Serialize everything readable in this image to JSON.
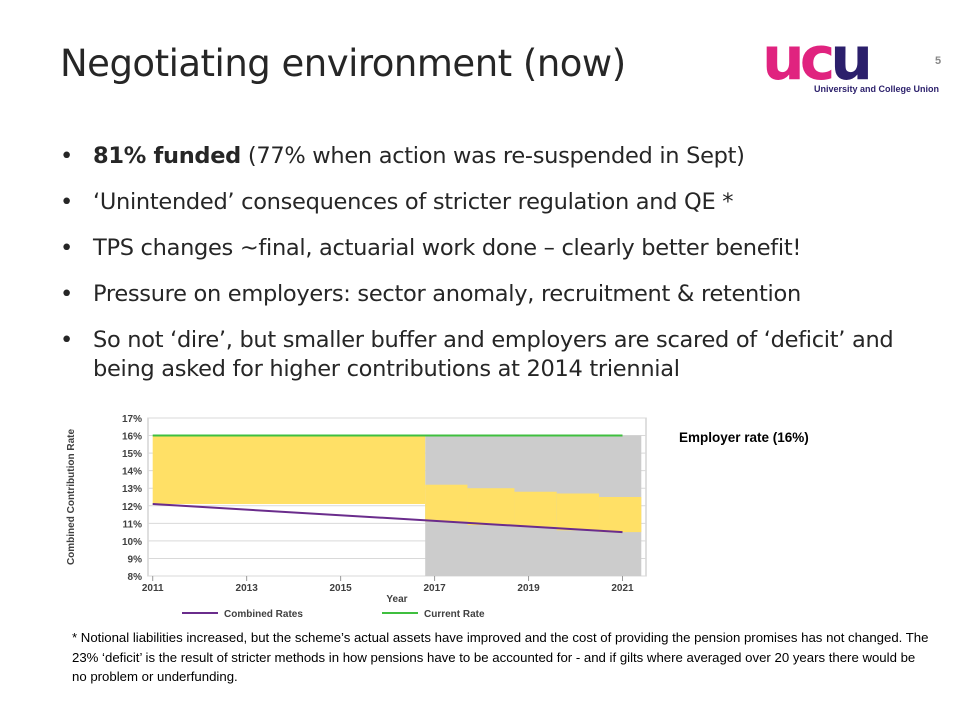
{
  "slide": {
    "title": "Negotiating environment (now)",
    "page_number": "5"
  },
  "logo": {
    "letters": [
      "u",
      "c",
      "u"
    ],
    "subtitle": "University and College Union",
    "colors": {
      "pink": "#e0237f",
      "purple": "#2b1f6b"
    }
  },
  "bullets": [
    {
      "bold": "81% funded",
      "text": " (77% when action was re-suspended in Sept)"
    },
    {
      "bold": "",
      "text": "‘Unintended’ consequences of stricter regulation and QE *"
    },
    {
      "bold": "",
      "text": "TPS changes ~final, actuarial work done – clearly better benefit!"
    },
    {
      "bold": "",
      "text": "Pressure on employers: sector anomaly, recruitment & retention"
    },
    {
      "bold": "",
      "text": "So not ‘dire’, but smaller buffer and employers are scared of ‘deficit’ and being asked for higher contributions at 2014 triennial"
    }
  ],
  "employer_label": "Employer rate (16%)",
  "footnote": "* Notional liabilities increased, but the scheme’s actual assets have improved and the cost of providing the pension promises has not changed. The 23% ‘deficit’ is the result of stricter methods in how pensions have to be accounted for - and if gilts where averaged over 20 years there would be no problem or underfunding.",
  "chart_data": {
    "type": "line",
    "xlabel": "Year",
    "ylabel": "Combined Contribution Rate",
    "xlim": [
      2011,
      2021
    ],
    "ylim": [
      8,
      17
    ],
    "x_ticks": [
      "2011",
      "2013",
      "2015",
      "2017",
      "2019",
      "2021"
    ],
    "y_ticks": [
      "8%",
      "9%",
      "10%",
      "11%",
      "12%",
      "13%",
      "14%",
      "15%",
      "16%",
      "17%"
    ],
    "series": [
      {
        "name": "Combined Rates",
        "color": "#6a2c8c",
        "x": [
          2011,
          2021
        ],
        "y": [
          12.1,
          10.5
        ]
      },
      {
        "name": "Current Rate",
        "color": "#3fbf3f",
        "x": [
          2011,
          2021
        ],
        "y": [
          16,
          16
        ]
      }
    ],
    "shaded_areas": {
      "yellow": {
        "color": "#ffe066",
        "steps": [
          {
            "x0": 2011,
            "x1": 2016.8,
            "lower": 12.1,
            "upper": 16
          },
          {
            "x0": 2016.8,
            "x1": 2017.7,
            "lower": 11.1,
            "upper": 13.2
          },
          {
            "x0": 2017.7,
            "x1": 2018.7,
            "lower": 10.9,
            "upper": 13.0
          },
          {
            "x0": 2018.7,
            "x1": 2019.6,
            "lower": 10.8,
            "upper": 12.8
          },
          {
            "x0": 2019.6,
            "x1": 2020.5,
            "lower": 10.6,
            "upper": 12.7
          },
          {
            "x0": 2020.5,
            "x1": 2021.4,
            "lower": 10.5,
            "upper": 12.5
          }
        ]
      },
      "grey": {
        "color": "#cccccc",
        "x0": 2016.8,
        "x1": 2021.4,
        "upper": 16
      }
    },
    "grid": true,
    "legend": "bottom"
  }
}
